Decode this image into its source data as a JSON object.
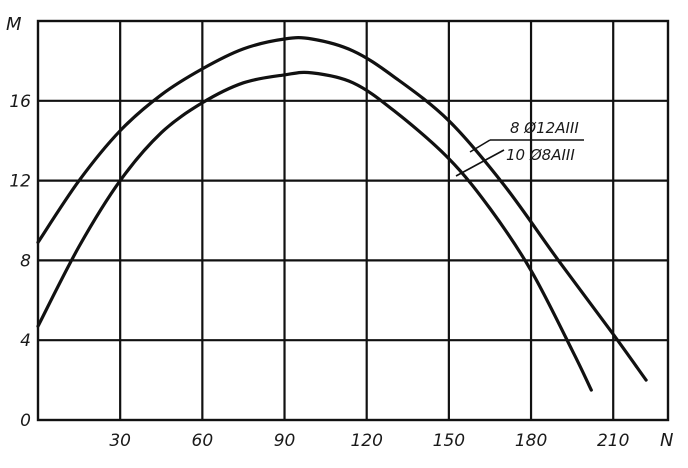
{
  "chart_data": {
    "type": "line",
    "title": "",
    "xlabel": "N",
    "ylabel": "M",
    "xlim": [
      0,
      230
    ],
    "ylim": [
      0,
      20
    ],
    "xticks": [
      30,
      60,
      90,
      120,
      150,
      180,
      210
    ],
    "yticks": [
      0,
      4,
      8,
      12,
      16
    ],
    "grid": true,
    "series": [
      {
        "name": "8 Ø12AIII",
        "color": "#111111",
        "points": [
          [
            0,
            8.9
          ],
          [
            15,
            12.0
          ],
          [
            30,
            14.5
          ],
          [
            45,
            16.3
          ],
          [
            60,
            17.6
          ],
          [
            75,
            18.6
          ],
          [
            90,
            19.1
          ],
          [
            100,
            19.1
          ],
          [
            115,
            18.5
          ],
          [
            130,
            17.2
          ],
          [
            150,
            15.0
          ],
          [
            170,
            11.8
          ],
          [
            190,
            8.0
          ],
          [
            210,
            4.3
          ],
          [
            222,
            2.0
          ]
        ]
      },
      {
        "name": "10 Ø8AIII",
        "color": "#111111",
        "points": [
          [
            0,
            4.7
          ],
          [
            15,
            8.7
          ],
          [
            30,
            12.0
          ],
          [
            45,
            14.4
          ],
          [
            60,
            15.9
          ],
          [
            75,
            16.9
          ],
          [
            90,
            17.3
          ],
          [
            100,
            17.4
          ],
          [
            115,
            16.9
          ],
          [
            130,
            15.5
          ],
          [
            150,
            13.1
          ],
          [
            165,
            10.6
          ],
          [
            180,
            7.5
          ],
          [
            195,
            3.5
          ],
          [
            202,
            1.5
          ]
        ]
      }
    ]
  }
}
